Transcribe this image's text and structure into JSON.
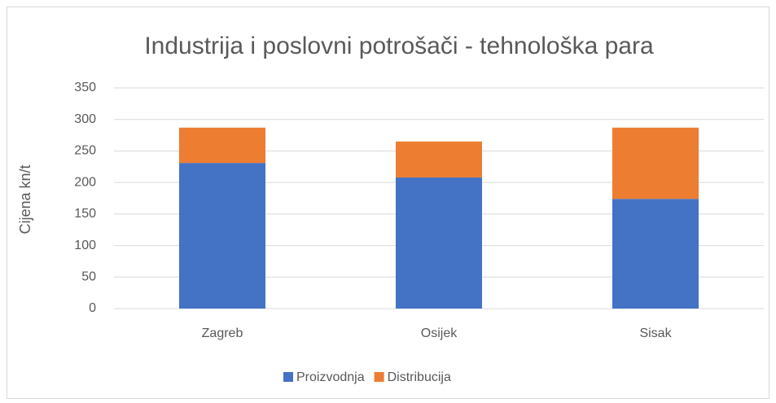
{
  "chart_data": {
    "type": "stacked_bar",
    "title": "Industrija i poslovni potrošači - tehnološka para",
    "ylabel": "Cijena kn/t",
    "categories": [
      "Zagreb",
      "Osijek",
      "Sisak"
    ],
    "series": [
      {
        "name": "Proizvodnja",
        "color": "#4472c4",
        "values": [
          231,
          208,
          174
        ]
      },
      {
        "name": "Distribucija",
        "color": "#ed7d31",
        "values": [
          56,
          57,
          113
        ]
      }
    ],
    "ylim": [
      0,
      350
    ],
    "yticks": [
      0,
      50,
      100,
      150,
      200,
      250,
      300,
      350
    ],
    "grid": true,
    "legend": "bottom"
  }
}
